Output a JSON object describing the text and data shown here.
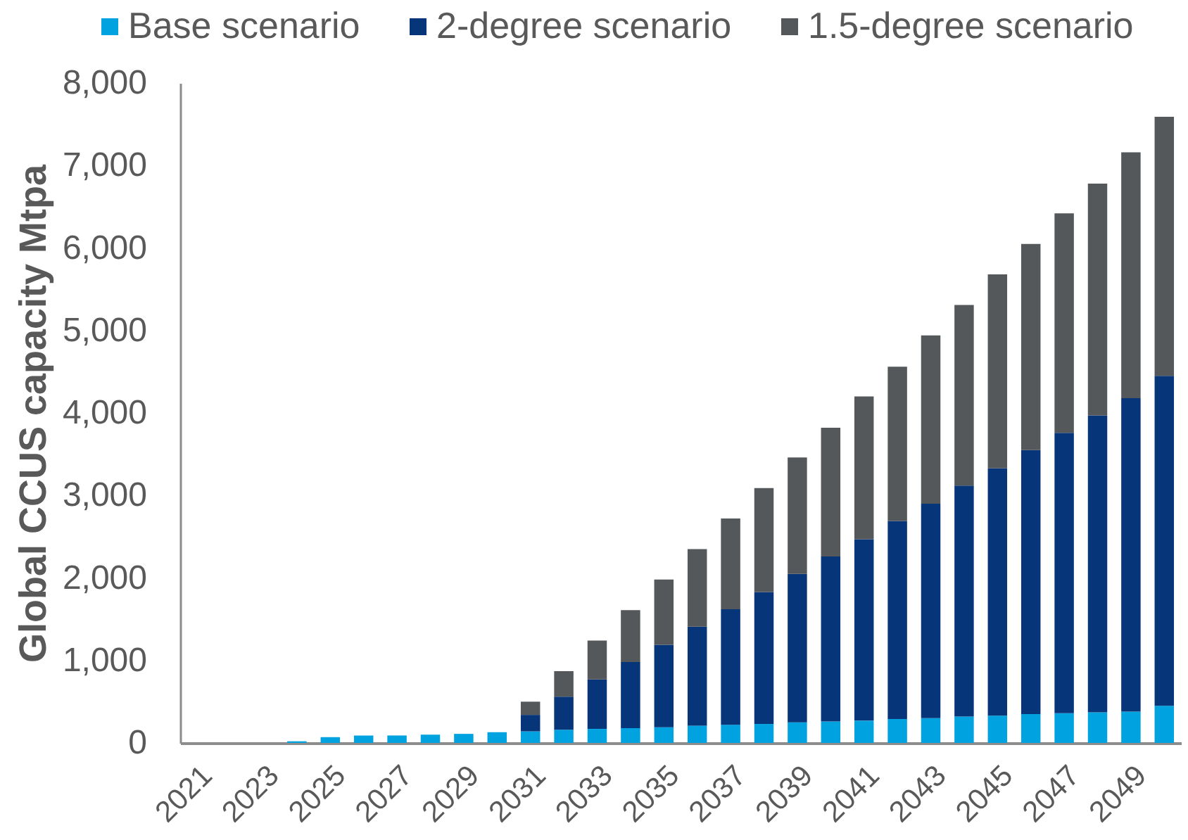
{
  "chart_data": {
    "type": "bar",
    "stacked": true,
    "ylabel": "Global CCUS capacity Mtpa",
    "categories": [
      "2021",
      null,
      "2023",
      null,
      "2025",
      null,
      "2027",
      null,
      "2029",
      null,
      "2031",
      null,
      "2033",
      null,
      "2035",
      null,
      "2037",
      null,
      "2039",
      null,
      "2041",
      null,
      "2043",
      null,
      "2045",
      null,
      "2047",
      null,
      "2049",
      null
    ],
    "series": [
      {
        "name": "Base scenario",
        "color": "#00a3e0",
        "values": [
          null,
          null,
          null,
          20,
          70,
          90,
          90,
          100,
          110,
          130,
          140,
          160,
          170,
          180,
          190,
          210,
          220,
          230,
          250,
          260,
          270,
          290,
          300,
          320,
          330,
          350,
          360,
          370,
          380,
          450
        ]
      },
      {
        "name": "2-degree scenario",
        "color": "#06357a",
        "values": [
          null,
          null,
          null,
          null,
          null,
          null,
          null,
          null,
          null,
          null,
          200,
          400,
          600,
          800,
          1000,
          1200,
          1400,
          1600,
          1800,
          2000,
          2200,
          2400,
          2600,
          2800,
          3000,
          3200,
          3400,
          3600,
          3800,
          4000
        ]
      },
      {
        "name": "1.5-degree scenario",
        "color": "#54585a",
        "values": [
          null,
          null,
          null,
          null,
          null,
          null,
          null,
          null,
          null,
          null,
          160,
          310,
          470,
          630,
          790,
          940,
          1100,
          1260,
          1410,
          1560,
          1730,
          1870,
          2040,
          2190,
          2350,
          2500,
          2660,
          2810,
          2980,
          3140
        ]
      }
    ],
    "ylim": [
      0,
      8000
    ],
    "yticks": [
      {
        "value": 0,
        "label": "0"
      },
      {
        "value": 1000,
        "label": "1,000"
      },
      {
        "value": 2000,
        "label": "2,000"
      },
      {
        "value": 3000,
        "label": "3,000"
      },
      {
        "value": 4000,
        "label": "4,000"
      },
      {
        "value": 5000,
        "label": "5,000"
      },
      {
        "value": 6000,
        "label": "6,000"
      },
      {
        "value": 7000,
        "label": "7,000"
      },
      {
        "value": 8000,
        "label": "8,000"
      }
    ],
    "grid": false,
    "legend": "top"
  }
}
